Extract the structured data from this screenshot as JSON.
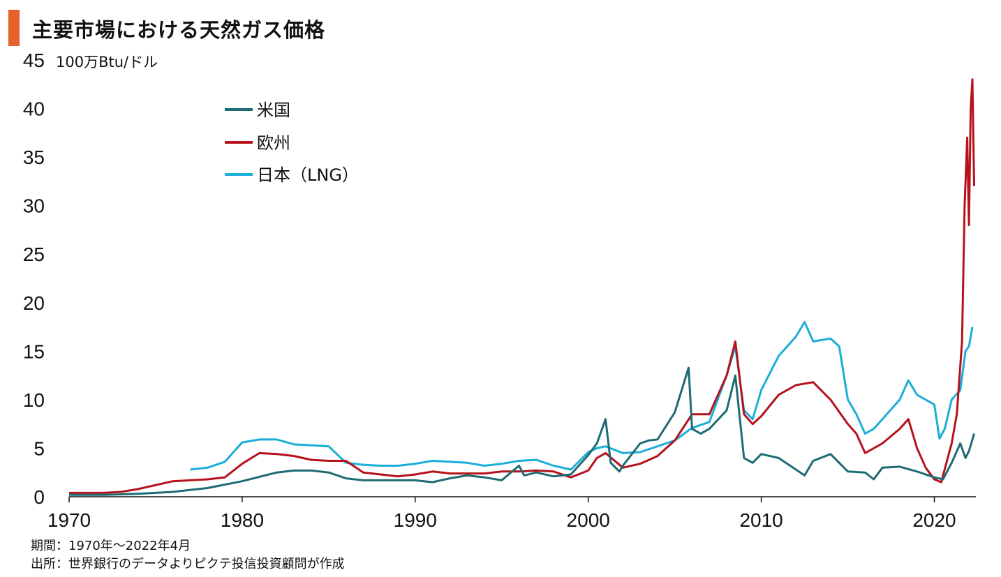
{
  "title": "主要市場における天然ガス価格",
  "footer": {
    "period": "期間：1970年～2022年4月",
    "source": "出所：世界銀行のデータよりピクテ投信投資顧問が作成"
  },
  "colors": {
    "title_accent": "#e8602a",
    "us": "#1e6b73",
    "europe": "#b5121b",
    "japan": "#1aaed8"
  },
  "chart_data": {
    "type": "line",
    "title": "主要市場における天然ガス価格",
    "ylabel": "100万Btu/ドル",
    "xlabel": "",
    "xlim": [
      1970,
      2022.4
    ],
    "ylim": [
      0,
      45
    ],
    "x_ticks": [
      "1970",
      "1980",
      "1990",
      "2000",
      "2010",
      "2020"
    ],
    "y_ticks": [
      "0",
      "5",
      "10",
      "15",
      "20",
      "25",
      "30",
      "35",
      "40",
      "45"
    ],
    "grid": false,
    "legend_position": "top-center",
    "series": [
      {
        "name": "米国",
        "color": "#1e6b73",
        "x": [
          1970,
          1972,
          1974,
          1976,
          1978,
          1980,
          1982,
          1983,
          1984,
          1985,
          1986,
          1987,
          1988,
          1989,
          1990,
          1991,
          1992,
          1993,
          1994,
          1995,
          1996,
          1996.3,
          1997,
          1998,
          1999,
          2000,
          2000.5,
          2001,
          2001.3,
          2001.8,
          2002,
          2003,
          2003.5,
          2004,
          2005,
          2005.8,
          2006,
          2006.5,
          2007,
          2008,
          2008.5,
          2009,
          2009.5,
          2010,
          2011,
          2012,
          2012.5,
          2013,
          2014,
          2015,
          2016,
          2016.5,
          2017,
          2018,
          2019,
          2020,
          2020.5,
          2021,
          2021.5,
          2021.8,
          2022,
          2022.3
        ],
        "y": [
          0.2,
          0.2,
          0.3,
          0.5,
          0.9,
          1.6,
          2.5,
          2.7,
          2.7,
          2.5,
          1.9,
          1.7,
          1.7,
          1.7,
          1.7,
          1.5,
          1.9,
          2.2,
          2.0,
          1.7,
          3.2,
          2.2,
          2.5,
          2.1,
          2.3,
          4.3,
          5.5,
          8.0,
          3.5,
          2.6,
          3.2,
          5.5,
          5.8,
          5.9,
          8.7,
          13.3,
          7.0,
          6.5,
          7.0,
          8.9,
          12.5,
          4.0,
          3.5,
          4.4,
          4.0,
          2.8,
          2.2,
          3.7,
          4.4,
          2.6,
          2.5,
          1.8,
          3.0,
          3.1,
          2.6,
          2.0,
          1.8,
          3.5,
          5.5,
          4.0,
          4.7,
          6.5
        ]
      },
      {
        "name": "欧州",
        "color": "#b5121b",
        "x": [
          1970,
          1972,
          1973,
          1974,
          1976,
          1978,
          1979,
          1980,
          1981,
          1982,
          1983,
          1984,
          1985,
          1986,
          1987,
          1988,
          1989,
          1990,
          1991,
          1992,
          1993,
          1994,
          1995,
          1996,
          1997,
          1998,
          1999,
          2000,
          2000.5,
          2001,
          2002,
          2003,
          2004,
          2005,
          2006,
          2007,
          2008,
          2008.5,
          2009,
          2009.5,
          2010,
          2011,
          2012,
          2013,
          2014,
          2015,
          2015.5,
          2016,
          2017,
          2018,
          2018.5,
          2019,
          2019.5,
          2020,
          2020.4,
          2021,
          2021.3,
          2021.6,
          2021.75,
          2021.9,
          2022,
          2022.1,
          2022.2,
          2022.3
        ],
        "y": [
          0.4,
          0.4,
          0.5,
          0.8,
          1.6,
          1.8,
          2.0,
          3.4,
          4.5,
          4.4,
          4.2,
          3.8,
          3.7,
          3.7,
          2.5,
          2.3,
          2.1,
          2.3,
          2.6,
          2.4,
          2.4,
          2.4,
          2.6,
          2.6,
          2.7,
          2.6,
          2.0,
          2.7,
          4.0,
          4.5,
          3.0,
          3.4,
          4.2,
          5.8,
          8.5,
          8.5,
          12.5,
          16.0,
          8.5,
          7.5,
          8.3,
          10.5,
          11.5,
          11.8,
          10.0,
          7.5,
          6.5,
          4.5,
          5.5,
          7.0,
          8.0,
          5.0,
          3.0,
          1.8,
          1.5,
          5.5,
          8.5,
          16.0,
          30.0,
          37.0,
          28.0,
          40.0,
          43.0,
          32.0
        ]
      },
      {
        "name": "日本（LNG）",
        "color": "#1aaed8",
        "x": [
          1977,
          1978,
          1979,
          1980,
          1981,
          1982,
          1983,
          1984,
          1985,
          1986,
          1987,
          1988,
          1989,
          1990,
          1991,
          1992,
          1993,
          1994,
          1995,
          1996,
          1997,
          1998,
          1999,
          2000,
          2000.5,
          2001,
          2002,
          2003,
          2004,
          2005,
          2006,
          2007,
          2008,
          2008.5,
          2009,
          2009.5,
          2010,
          2011,
          2012,
          2012.5,
          2013,
          2014,
          2014.5,
          2015,
          2015.5,
          2016,
          2016.5,
          2017,
          2018,
          2018.5,
          2019,
          2020,
          2020.3,
          2020.6,
          2021,
          2021.5,
          2021.8,
          2022,
          2022.2
        ],
        "y": [
          2.8,
          3.0,
          3.6,
          5.6,
          5.9,
          5.9,
          5.4,
          5.3,
          5.2,
          3.5,
          3.3,
          3.2,
          3.2,
          3.4,
          3.7,
          3.6,
          3.5,
          3.2,
          3.4,
          3.7,
          3.8,
          3.2,
          2.8,
          4.6,
          5.0,
          5.2,
          4.5,
          4.6,
          5.2,
          5.8,
          7.1,
          7.7,
          12.5,
          15.5,
          8.9,
          8.0,
          11.0,
          14.5,
          16.5,
          18.0,
          16.0,
          16.3,
          15.5,
          10.0,
          8.5,
          6.5,
          7.0,
          8.0,
          10.0,
          12.0,
          10.5,
          9.5,
          6.0,
          7.0,
          10.0,
          11.0,
          15.0,
          15.5,
          17.5
        ]
      }
    ]
  }
}
